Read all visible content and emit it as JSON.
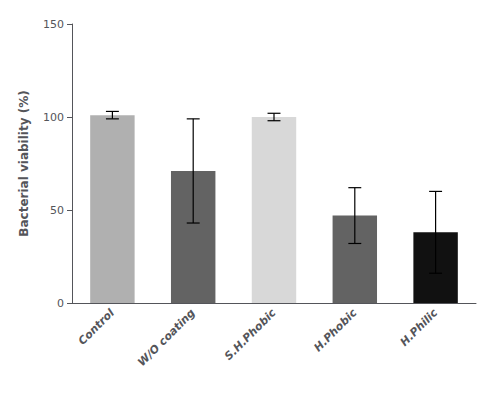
{
  "chart_data": {
    "type": "bar",
    "categories": [
      "Control",
      "W/O coating",
      "S.H.Phobic",
      "H.Phobic",
      "H.Philic"
    ],
    "values": [
      101,
      71,
      100,
      47,
      38
    ],
    "errors": [
      2,
      28,
      2,
      15,
      22
    ],
    "colors": [
      "#b0b0b0",
      "#636363",
      "#d8d8d8",
      "#636363",
      "#111111"
    ],
    "ylabel": "Bacterial viability (%)",
    "ylim": [
      0,
      150
    ],
    "yticks": [
      0,
      50,
      100,
      150
    ],
    "grid": false
  }
}
